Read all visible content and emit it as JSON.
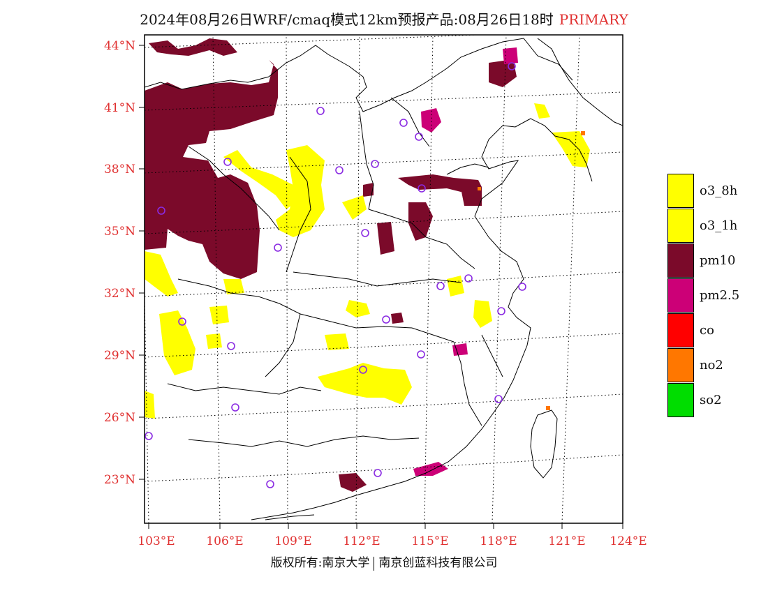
{
  "title": {
    "text": "2024年08月26日WRF/cmaq模式12km预报产品:08月26日18时",
    "tag": "PRIMARY"
  },
  "axes": {
    "lat_labels": [
      "44°N",
      "41°N",
      "38°N",
      "35°N",
      "32°N",
      "29°N",
      "26°N",
      "23°N"
    ],
    "lon_labels": [
      "103°E",
      "106°E",
      "109°E",
      "112°E",
      "115°E",
      "118°E",
      "121°E",
      "124°E"
    ],
    "label_color": "#e03030"
  },
  "legend": {
    "items": [
      {
        "label": "o3_8h",
        "color": "#ffff00"
      },
      {
        "label": "o3_1h",
        "color": "#ffff00"
      },
      {
        "label": "pm10",
        "color": "#7b0a2a"
      },
      {
        "label": "pm2.5",
        "color": "#cc0077"
      },
      {
        "label": "co",
        "color": "#ff0000"
      },
      {
        "label": "no2",
        "color": "#ff7700"
      },
      {
        "label": "so2",
        "color": "#00dd00"
      }
    ]
  },
  "copyright": {
    "left": "版权所有:南京大学",
    "right": "南京创蓝科技有限公司"
  },
  "colors": {
    "pm10": "#7b0a2a",
    "o3": "#ffff00",
    "pm25": "#cc0077",
    "no2": "#ff7700",
    "station": "#8a2be2"
  }
}
